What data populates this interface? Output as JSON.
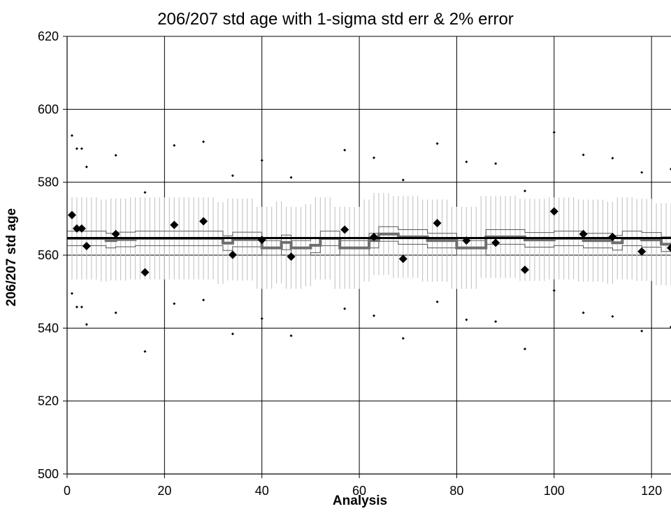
{
  "chart_data": {
    "type": "scatter",
    "title": "206/207 std age with 1-sigma std err & 2% error",
    "xlabel": "Analysis",
    "ylabel": "206/207 std age",
    "xlim": [
      0,
      124
    ],
    "ylim": [
      500,
      620
    ],
    "xticks": [
      0,
      20,
      40,
      60,
      80,
      100,
      120
    ],
    "yticks": [
      500,
      520,
      540,
      560,
      580,
      600,
      620
    ],
    "grid": true,
    "legend": "none",
    "reference_line": {
      "y": 564.7,
      "color": "#000000"
    },
    "series": [
      {
        "kind": "points_with_1sigma",
        "color": "#000000",
        "points": [
          {
            "x": 1,
            "y": 571.0,
            "lo": 549.5,
            "hi": 592.8
          },
          {
            "x": 2,
            "y": 567.3,
            "lo": 545.8,
            "hi": 589.2
          },
          {
            "x": 3,
            "y": 567.3,
            "lo": 545.8,
            "hi": 589.2
          },
          {
            "x": 4,
            "y": 562.5,
            "lo": 541.0,
            "hi": 584.2
          },
          {
            "x": 10,
            "y": 565.8,
            "lo": 544.2,
            "hi": 587.4
          },
          {
            "x": 16,
            "y": 555.3,
            "lo": 533.6,
            "hi": 577.2
          },
          {
            "x": 22,
            "y": 568.3,
            "lo": 546.7,
            "hi": 590.1
          },
          {
            "x": 28,
            "y": 569.3,
            "lo": 547.7,
            "hi": 591.1
          },
          {
            "x": 34,
            "y": 560.1,
            "lo": 538.4,
            "hi": 581.8
          },
          {
            "x": 40,
            "y": 564.2,
            "lo": 542.6,
            "hi": 586.0
          },
          {
            "x": 46,
            "y": 559.6,
            "lo": 537.9,
            "hi": 581.3
          },
          {
            "x": 57,
            "y": 567.0,
            "lo": 545.3,
            "hi": 588.8
          },
          {
            "x": 63,
            "y": 565.0,
            "lo": 543.4,
            "hi": 586.7
          },
          {
            "x": 69,
            "y": 559.0,
            "lo": 537.2,
            "hi": 580.6
          },
          {
            "x": 76,
            "y": 568.8,
            "lo": 547.2,
            "hi": 590.6
          },
          {
            "x": 82,
            "y": 564.0,
            "lo": 542.3,
            "hi": 585.6
          },
          {
            "x": 88,
            "y": 563.4,
            "lo": 541.8,
            "hi": 585.1
          },
          {
            "x": 94,
            "y": 556.0,
            "lo": 534.3,
            "hi": 577.6
          },
          {
            "x": 100,
            "y": 572.0,
            "lo": 550.3,
            "hi": 593.7
          },
          {
            "x": 106,
            "y": 565.8,
            "lo": 544.2,
            "hi": 587.5
          },
          {
            "x": 112,
            "y": 565.0,
            "lo": 543.2,
            "hi": 586.6
          },
          {
            "x": 118,
            "y": 561.0,
            "lo": 539.2,
            "hi": 582.7
          },
          {
            "x": 124,
            "y": 562.0,
            "lo": 540.3,
            "hi": 583.6
          }
        ]
      },
      {
        "kind": "running_mean",
        "color": "#6e6e6e",
        "x": [
          0,
          2,
          4,
          6,
          8,
          10,
          12,
          14,
          16,
          18,
          20,
          22,
          24,
          26,
          28,
          30,
          32,
          34,
          36,
          38,
          40,
          42,
          44,
          46,
          48,
          50,
          52,
          54,
          56,
          58,
          60,
          62,
          64,
          66,
          68,
          70,
          72,
          74,
          76,
          78,
          80,
          82,
          84,
          86,
          88,
          90,
          92,
          94,
          96,
          98,
          100,
          102,
          104,
          106,
          108,
          110,
          112,
          114,
          116,
          118,
          120,
          122,
          124
        ],
        "y": [
          564.6,
          564.6,
          564.6,
          564.6,
          564.0,
          564.3,
          564.3,
          564.6,
          564.6,
          564.6,
          564.6,
          564.6,
          564.6,
          564.6,
          564.6,
          564.6,
          563.3,
          564.3,
          564.3,
          564.3,
          562.0,
          562.0,
          563.5,
          562.0,
          562.0,
          562.7,
          564.6,
          564.6,
          562.0,
          562.0,
          562.0,
          564.0,
          565.8,
          565.8,
          565.0,
          565.0,
          565.0,
          564.0,
          564.0,
          564.0,
          562.0,
          562.0,
          562.0,
          565.0,
          565.0,
          565.0,
          565.0,
          564.2,
          564.2,
          564.2,
          564.6,
          564.6,
          564.6,
          564.0,
          564.0,
          564.0,
          563.4,
          564.6,
          564.6,
          564.2,
          564.2,
          563.0,
          563.0
        ],
        "band_1sigma": 2.0,
        "error_2pct_band": [
          553.5,
          576.0
        ]
      }
    ]
  }
}
